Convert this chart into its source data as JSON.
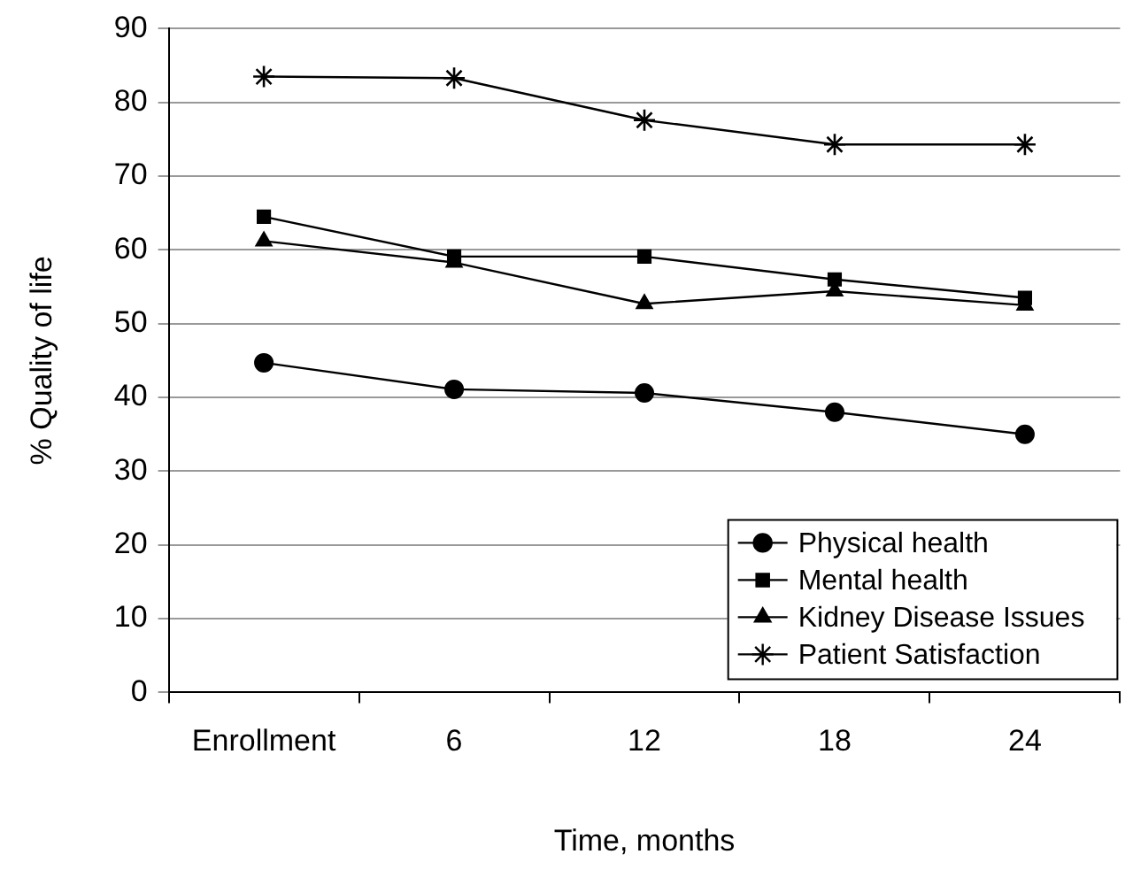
{
  "chart_data": {
    "type": "line",
    "xlabel": "Time, months",
    "ylabel": "% Quality of life",
    "categories": [
      "Enrollment",
      "6",
      "12",
      "18",
      "24"
    ],
    "series": [
      {
        "name": "Physical health",
        "color": "#000000",
        "marker": "circle",
        "values": [
          44.7,
          41.1,
          40.6,
          38.0,
          35.0
        ]
      },
      {
        "name": "Mental health",
        "color": "#000000",
        "marker": "square",
        "values": [
          64.5,
          59.1,
          59.1,
          56.0,
          53.5
        ]
      },
      {
        "name": "Kidney Disease Issues",
        "color": "#000000",
        "marker": "triangle",
        "values": [
          61.2,
          58.3,
          52.7,
          54.4,
          52.5
        ]
      },
      {
        "name": "Patient Satisfaction",
        "color": "#000000",
        "marker": "cross",
        "values": [
          83.5,
          83.3,
          77.6,
          74.3,
          74.3
        ]
      }
    ],
    "ylim": [
      0,
      90
    ],
    "yticks": [
      0,
      10,
      20,
      30,
      40,
      50,
      60,
      70,
      80,
      90
    ],
    "grid": "y",
    "legend": "bottom right"
  }
}
